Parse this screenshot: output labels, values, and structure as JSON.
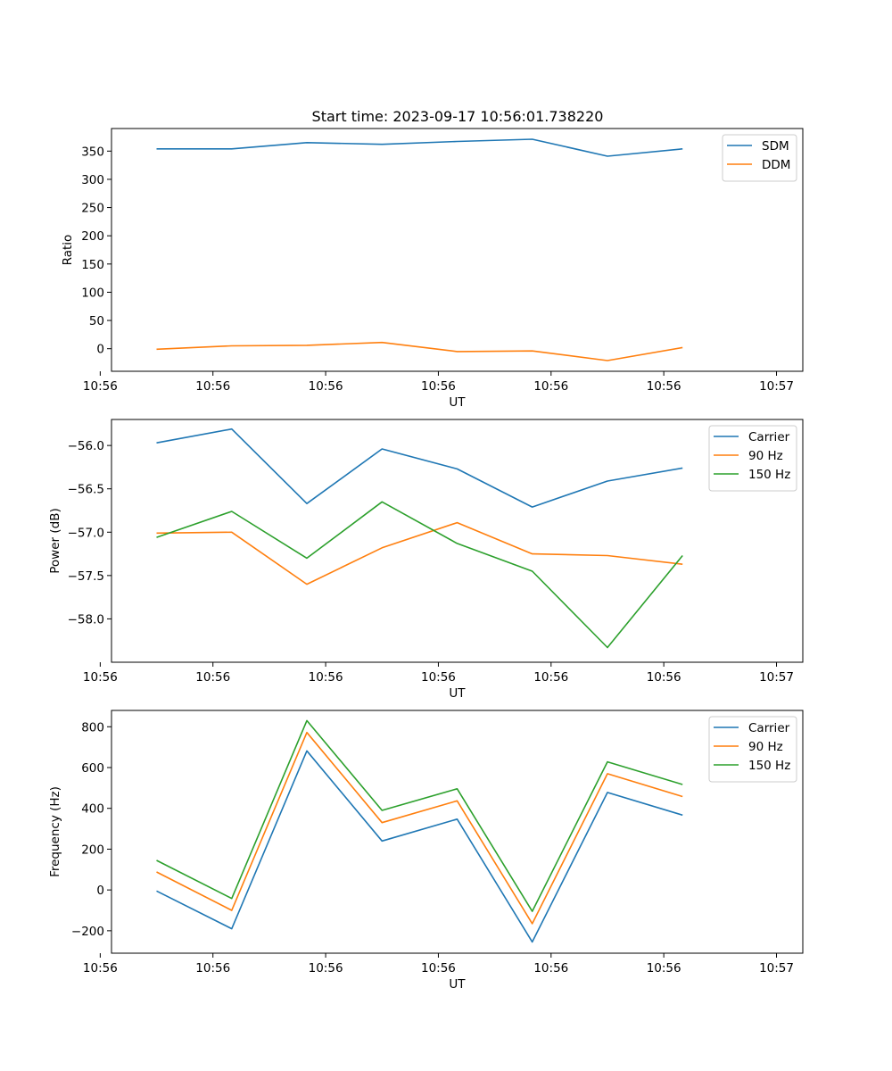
{
  "title": "Start time: 2023-09-17 10:56:01.738220",
  "chart_data": [
    {
      "type": "line",
      "xlabel": "UT",
      "ylabel": "Ratio",
      "xlim": [
        -0.6,
        8.6
      ],
      "ylim": [
        -40,
        390
      ],
      "x": [
        0,
        1,
        2,
        3,
        4,
        5,
        6,
        7
      ],
      "xtick_values": [
        -0.75,
        0.75,
        2.25,
        3.75,
        5.25,
        6.75,
        8.25
      ],
      "xtick_labels": [
        "10:56",
        "10:56",
        "10:56",
        "10:56",
        "10:56",
        "10:56",
        "10:57"
      ],
      "yticks": [
        0,
        50,
        100,
        150,
        200,
        250,
        300,
        350
      ],
      "ytick_labels": [
        "0",
        "50",
        "100",
        "150",
        "200",
        "250",
        "300",
        "350"
      ],
      "legend": "top-right",
      "series": [
        {
          "name": "SDM",
          "color": "#1f77b4",
          "values": [
            354,
            354,
            365,
            362,
            367,
            371,
            341,
            354
          ]
        },
        {
          "name": "DDM",
          "color": "#ff7f0e",
          "values": [
            -1,
            5,
            6,
            11,
            -5,
            -4,
            -21,
            2
          ]
        }
      ]
    },
    {
      "type": "line",
      "xlabel": "UT",
      "ylabel": "Power (dB)",
      "xlim": [
        -0.6,
        8.6
      ],
      "ylim": [
        -58.5,
        -55.7
      ],
      "x": [
        0,
        1,
        2,
        3,
        4,
        5,
        6,
        7
      ],
      "xtick_values": [
        -0.75,
        0.75,
        2.25,
        3.75,
        5.25,
        6.75,
        8.25
      ],
      "xtick_labels": [
        "10:56",
        "10:56",
        "10:56",
        "10:56",
        "10:56",
        "10:56",
        "10:57"
      ],
      "yticks": [
        -58.0,
        -57.5,
        -57.0,
        -56.5,
        -56.0
      ],
      "ytick_labels": [
        "−58.0",
        "−57.5",
        "−57.0",
        "−56.5",
        "−56.0"
      ],
      "legend": "top-right",
      "series": [
        {
          "name": "Carrier",
          "color": "#1f77b4",
          "values": [
            -55.97,
            -55.81,
            -56.67,
            -56.04,
            -56.27,
            -56.71,
            -56.41,
            -56.26
          ]
        },
        {
          "name": "90 Hz",
          "color": "#ff7f0e",
          "values": [
            -57.01,
            -57.0,
            -57.6,
            -57.18,
            -56.89,
            -57.25,
            -57.27,
            -57.37
          ]
        },
        {
          "name": "150 Hz",
          "color": "#2ca02c",
          "values": [
            -57.06,
            -56.76,
            -57.3,
            -56.65,
            -57.13,
            -57.45,
            -58.33,
            -57.27
          ]
        }
      ]
    },
    {
      "type": "line",
      "xlabel": "UT",
      "ylabel": "Frequency (Hz)",
      "xlim": [
        -0.6,
        8.6
      ],
      "ylim": [
        -310,
        880
      ],
      "x": [
        0,
        1,
        2,
        3,
        4,
        5,
        6,
        7
      ],
      "xtick_values": [
        -0.75,
        0.75,
        2.25,
        3.75,
        5.25,
        6.75,
        8.25
      ],
      "xtick_labels": [
        "10:56",
        "10:56",
        "10:56",
        "10:56",
        "10:56",
        "10:56",
        "10:57"
      ],
      "yticks": [
        -200,
        0,
        200,
        400,
        600,
        800
      ],
      "ytick_labels": [
        "−200",
        "0",
        "200",
        "400",
        "600",
        "800"
      ],
      "legend": "top-right",
      "series": [
        {
          "name": "Carrier",
          "color": "#1f77b4",
          "values": [
            -5,
            -190,
            682,
            240,
            347,
            -255,
            478,
            367
          ]
        },
        {
          "name": "90 Hz",
          "color": "#ff7f0e",
          "values": [
            88,
            -100,
            772,
            330,
            437,
            -165,
            570,
            458
          ]
        },
        {
          "name": "150 Hz",
          "color": "#2ca02c",
          "values": [
            145,
            -42,
            830,
            390,
            496,
            -105,
            628,
            517
          ]
        }
      ]
    }
  ]
}
